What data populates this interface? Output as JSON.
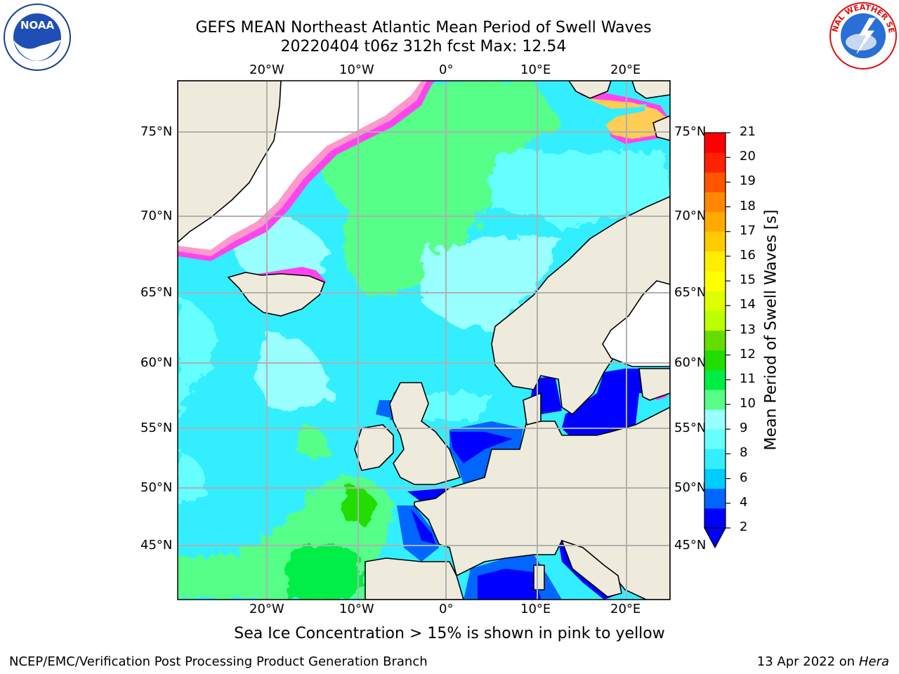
{
  "title_line1": "GEFS MEAN Northeast Atlantic Mean Period of Swell Waves",
  "title_line2": "20220404 t06z 312h fcst   Max: 12.54",
  "logos": {
    "left": "noaa-logo",
    "right": "national-weather-service-logo",
    "left_text": "NOAA",
    "right_text": "NATIONAL WEATHER SERVICE"
  },
  "map": {
    "lon_ticks": [
      "20°W",
      "10°W",
      "0°",
      "10°E",
      "20°E"
    ],
    "lat_ticks": [
      "75°N",
      "70°N",
      "65°N",
      "60°N",
      "55°N",
      "50°N",
      "45°N"
    ],
    "land_color": "#eeebdc",
    "grid_color": "#b0b0b0",
    "ice_colors": [
      "#ff44ee",
      "#ff99cc",
      "#ffcc55",
      "#ffee66"
    ]
  },
  "colorbar": {
    "label": "Mean Period of Swell Waves [s]",
    "ticks": [
      "2",
      "4",
      "6",
      "8",
      "9",
      "10",
      "11",
      "12",
      "13",
      "14",
      "15",
      "16",
      "17",
      "18",
      "19",
      "20",
      "21"
    ],
    "colors": [
      "#0000ff",
      "#0066ff",
      "#00ccff",
      "#33eeff",
      "#66ffff",
      "#99ffff",
      "#55ff88",
      "#00ee44",
      "#22dd00",
      "#66dd00",
      "#bbff00",
      "#ddff00",
      "#ffff00",
      "#ffee00",
      "#ffcc00",
      "#ffaa00",
      "#ff8800",
      "#ff5500",
      "#ff2200",
      "#ff0000"
    ],
    "extend_color": "#0000ff"
  },
  "note": "Sea Ice Concentration > 15% is shown in pink to yellow",
  "footer": {
    "left": "NCEP/EMC/Verification Post Processing Product Generation Branch",
    "right_prefix": "13 Apr 2022 on ",
    "right_host": "Hera"
  }
}
